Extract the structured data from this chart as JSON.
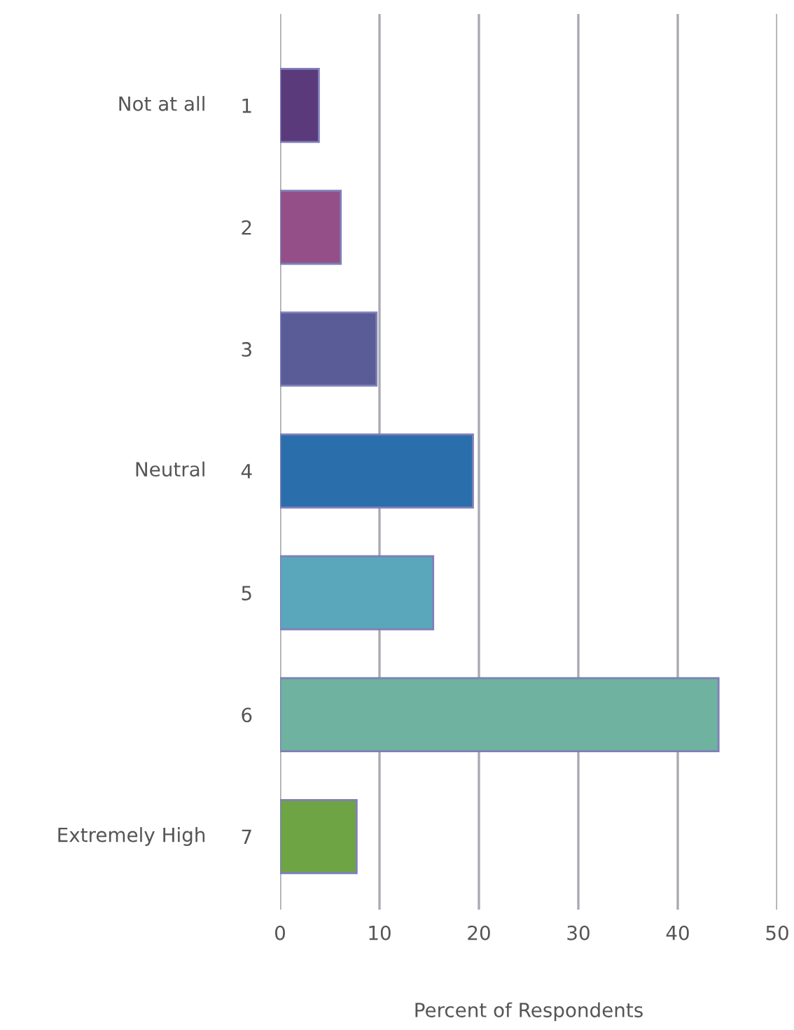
{
  "chart_data": {
    "type": "bar",
    "orientation": "horizontal",
    "xlabel": "Percent of Respondents",
    "categories": [
      "1",
      "2",
      "3",
      "4",
      "5",
      "6",
      "7"
    ],
    "values": [
      3.9,
      6.1,
      9.7,
      19.4,
      15.4,
      44.1,
      7.7
    ],
    "colors": [
      "#5a3a7a",
      "#944f88",
      "#5a5c98",
      "#2a6fab",
      "#5aa6bb",
      "#6fb29f",
      "#6ea443"
    ],
    "xlim": [
      0,
      50
    ],
    "xticks": [
      0,
      10,
      20,
      30,
      40,
      50
    ],
    "grid": "x",
    "annotations": [
      "Not at all",
      "Neutral",
      "Extremely High"
    ]
  }
}
